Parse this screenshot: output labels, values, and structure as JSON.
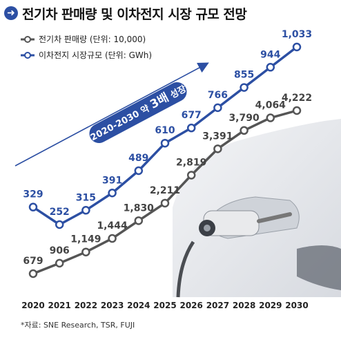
{
  "title": "전기차 판매량 및 이차전지 시장 규모 전망",
  "title_icon": "arrow-right-circle-icon",
  "growth_annotation": {
    "prefix": "2020-2030 약 ",
    "emphasis": "3배",
    "suffix": " 성장"
  },
  "footnote": "*자료: SNE Research, TSR, FUJI",
  "colors": {
    "ev_series": "#555555",
    "battery_series": "#2c4fa3",
    "annotation_band": "#2c4fa3"
  },
  "chart_data": {
    "type": "line",
    "x": [
      "2020",
      "2021",
      "2022",
      "2023",
      "2024",
      "2025",
      "2026",
      "2027",
      "2028",
      "2029",
      "2030"
    ],
    "series": [
      {
        "name": "전기차 판매량 (단위: 10,000)",
        "values": [
          679,
          906,
          1149,
          1444,
          1830,
          2211,
          2819,
          3391,
          3790,
          4064,
          4222
        ],
        "labels": [
          "679",
          "906",
          "1,149",
          "1,444",
          "1,830",
          "2,211",
          "2,819",
          "3,391",
          "3,790",
          "4,064",
          "4,222"
        ]
      },
      {
        "name": "이차전지 시장규모 (단위: GWh)",
        "values": [
          329,
          252,
          315,
          391,
          489,
          610,
          677,
          766,
          855,
          944,
          1033
        ],
        "labels": [
          "329",
          "252",
          "315",
          "391",
          "489",
          "610",
          "677",
          "766",
          "855",
          "944",
          "1,033"
        ]
      }
    ],
    "legend_position": "top-left",
    "grid": false
  }
}
